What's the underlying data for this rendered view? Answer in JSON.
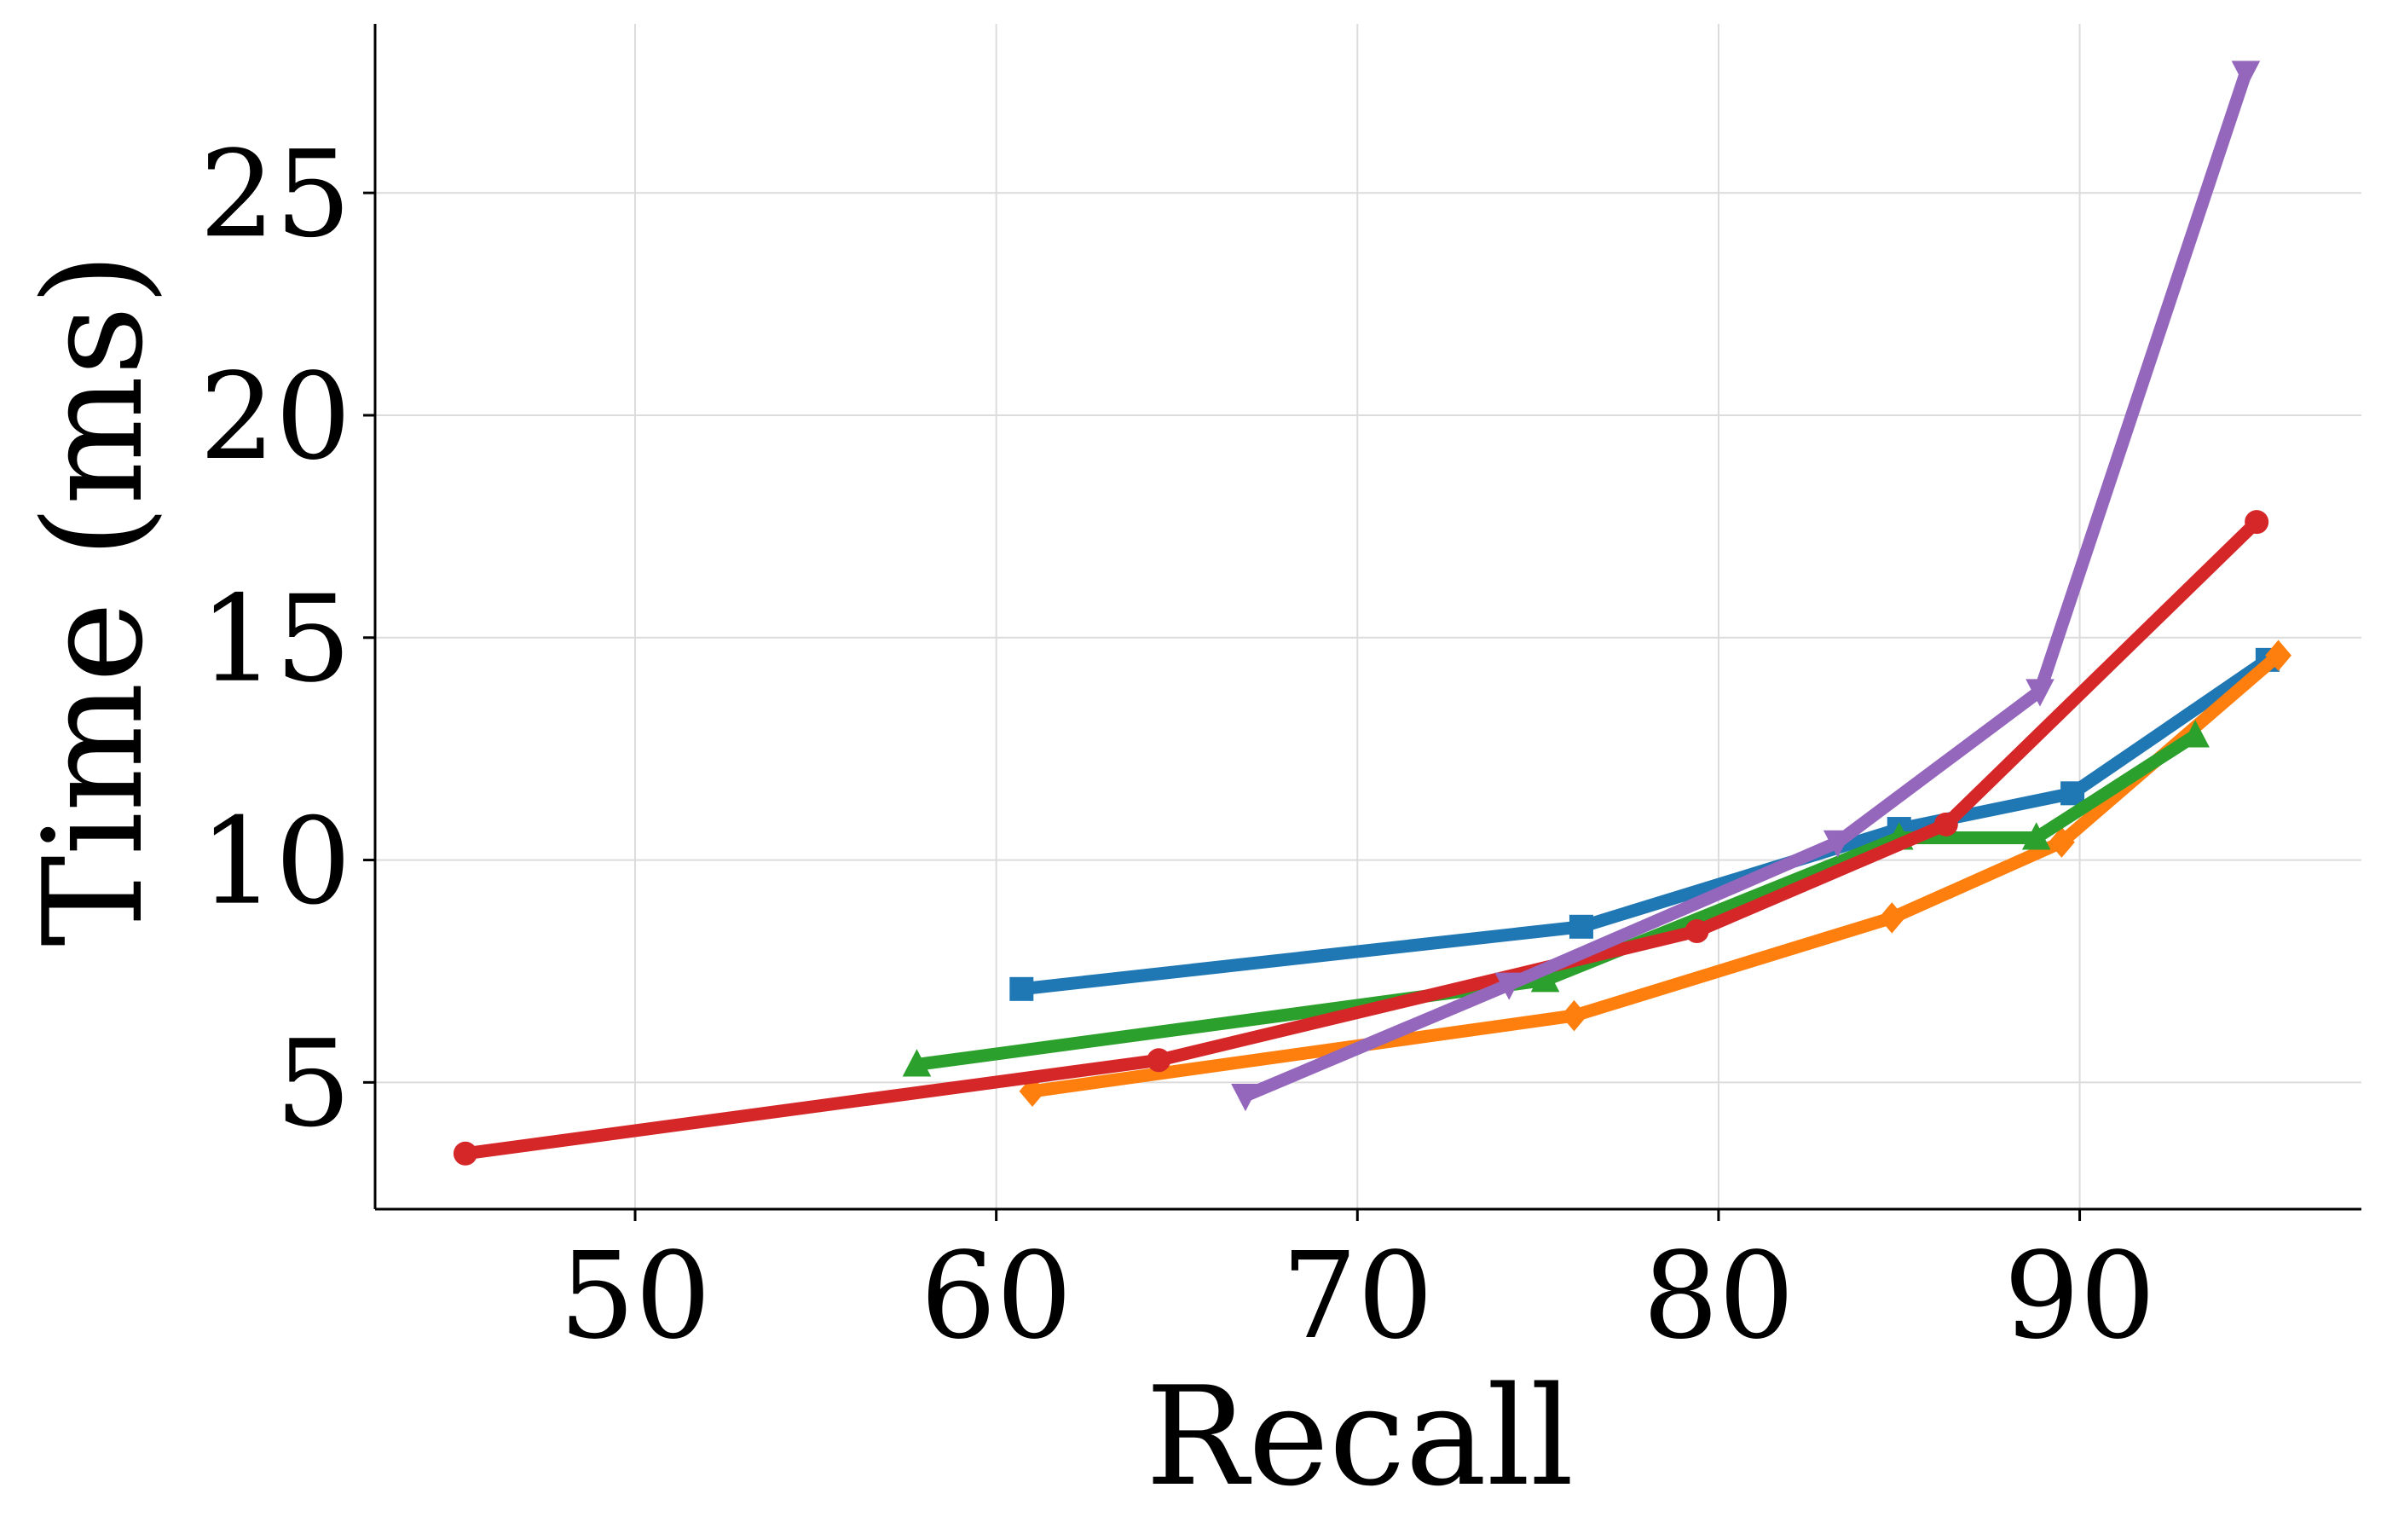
{
  "chart_data": {
    "type": "line",
    "title": "",
    "xlabel": "Recall",
    "ylabel": "Time (ms)",
    "xlim": [
      42.8,
      97.8
    ],
    "ylim": [
      2.15,
      28.8
    ],
    "xticks": [
      50,
      60,
      70,
      80,
      90
    ],
    "yticks": [
      5,
      10,
      15,
      20,
      25
    ],
    "grid": true,
    "legend": "none",
    "series": [
      {
        "color": "#1f77b4",
        "marker": "square",
        "x": [
          60.7,
          76.2,
          85.0,
          89.8,
          95.2
        ],
        "y": [
          7.1,
          8.5,
          10.7,
          11.5,
          14.5
        ]
      },
      {
        "color": "#ff7f0e",
        "marker": "diamond",
        "x": [
          61.0,
          76.0,
          84.8,
          89.5,
          95.5
        ],
        "y": [
          4.8,
          6.5,
          8.7,
          10.4,
          14.6
        ]
      },
      {
        "color": "#2ca02c",
        "marker": "triangle-up",
        "x": [
          57.8,
          75.2,
          85.0,
          88.8,
          93.2
        ],
        "y": [
          5.4,
          7.3,
          10.5,
          10.5,
          12.8
        ]
      },
      {
        "color": "#d62728",
        "marker": "circle",
        "x": [
          45.3,
          64.5,
          79.4,
          86.3,
          94.9
        ],
        "y": [
          3.4,
          5.5,
          8.4,
          10.8,
          17.6
        ]
      },
      {
        "color": "#9467bd",
        "marker": "triangle-down",
        "x": [
          66.9,
          74.2,
          83.3,
          88.9,
          94.6
        ],
        "y": [
          4.7,
          7.2,
          10.4,
          13.8,
          27.7
        ]
      }
    ]
  }
}
